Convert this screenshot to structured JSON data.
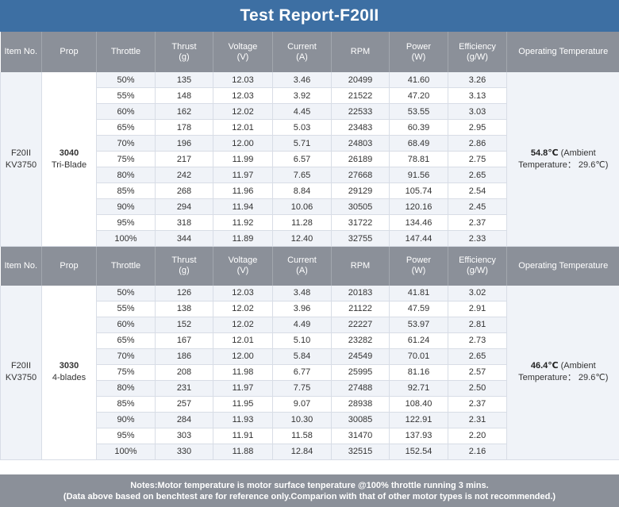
{
  "title": "Test Report-F20II",
  "headers": {
    "item_no": "Item No.",
    "prop": "Prop",
    "throttle": "Throttle",
    "thrust": "Thrust",
    "thrust_unit": "(g)",
    "voltage": "Voltage",
    "voltage_unit": "(V)",
    "current": "Current",
    "current_unit": "(A)",
    "rpm": "RPM",
    "power": "Power",
    "power_unit": "(W)",
    "efficiency": "Efficiency",
    "efficiency_unit": "(g/W)",
    "op_temp": "Operating Temperature"
  },
  "sections": [
    {
      "item_line1": "F20II",
      "item_line2": "KV3750",
      "prop_line1": "3040",
      "prop_line2": "Tri-Blade",
      "temp_value": "54.8℃",
      "temp_note_a": "(Ambient",
      "temp_note_b": "Temperature： 29.6℃)",
      "rows": [
        [
          "50%",
          "135",
          "12.03",
          "3.46",
          "20499",
          "41.60",
          "3.26"
        ],
        [
          "55%",
          "148",
          "12.03",
          "3.92",
          "21522",
          "47.20",
          "3.13"
        ],
        [
          "60%",
          "162",
          "12.02",
          "4.45",
          "22533",
          "53.55",
          "3.03"
        ],
        [
          "65%",
          "178",
          "12.01",
          "5.03",
          "23483",
          "60.39",
          "2.95"
        ],
        [
          "70%",
          "196",
          "12.00",
          "5.71",
          "24803",
          "68.49",
          "2.86"
        ],
        [
          "75%",
          "217",
          "11.99",
          "6.57",
          "26189",
          "78.81",
          "2.75"
        ],
        [
          "80%",
          "242",
          "11.97",
          "7.65",
          "27668",
          "91.56",
          "2.65"
        ],
        [
          "85%",
          "268",
          "11.96",
          "8.84",
          "29129",
          "105.74",
          "2.54"
        ],
        [
          "90%",
          "294",
          "11.94",
          "10.06",
          "30505",
          "120.16",
          "2.45"
        ],
        [
          "95%",
          "318",
          "11.92",
          "11.28",
          "31722",
          "134.46",
          "2.37"
        ],
        [
          "100%",
          "344",
          "11.89",
          "12.40",
          "32755",
          "147.44",
          "2.33"
        ]
      ]
    },
    {
      "item_line1": "F20II",
      "item_line2": "KV3750",
      "prop_line1": "3030",
      "prop_line2": "4-blades",
      "temp_value": "46.4℃",
      "temp_note_a": "(Ambient",
      "temp_note_b": "Temperature： 29.6℃)",
      "rows": [
        [
          "50%",
          "126",
          "12.03",
          "3.48",
          "20183",
          "41.81",
          "3.02"
        ],
        [
          "55%",
          "138",
          "12.02",
          "3.96",
          "21122",
          "47.59",
          "2.91"
        ],
        [
          "60%",
          "152",
          "12.02",
          "4.49",
          "22227",
          "53.97",
          "2.81"
        ],
        [
          "65%",
          "167",
          "12.01",
          "5.10",
          "23282",
          "61.24",
          "2.73"
        ],
        [
          "70%",
          "186",
          "12.00",
          "5.84",
          "24549",
          "70.01",
          "2.65"
        ],
        [
          "75%",
          "208",
          "11.98",
          "6.77",
          "25995",
          "81.16",
          "2.57"
        ],
        [
          "80%",
          "231",
          "11.97",
          "7.75",
          "27488",
          "92.71",
          "2.50"
        ],
        [
          "85%",
          "257",
          "11.95",
          "9.07",
          "28938",
          "108.40",
          "2.37"
        ],
        [
          "90%",
          "284",
          "11.93",
          "10.30",
          "30085",
          "122.91",
          "2.31"
        ],
        [
          "95%",
          "303",
          "11.91",
          "11.58",
          "31470",
          "137.93",
          "2.20"
        ],
        [
          "100%",
          "330",
          "11.88",
          "12.84",
          "32515",
          "152.54",
          "2.16"
        ]
      ]
    }
  ],
  "notes": {
    "line1": "Notes:Motor temperature is motor surface tenperature @100% throttle running 3 mins.",
    "line2": "(Data above based on benchtest are for reference only.Comparion with that of other motor types is not recommended.)"
  },
  "colors": {
    "title_bg": "#3d6fa3",
    "header_bg": "#8b9099",
    "accent_text": "#3d6fa3",
    "stripe": "#f0f3f8"
  }
}
